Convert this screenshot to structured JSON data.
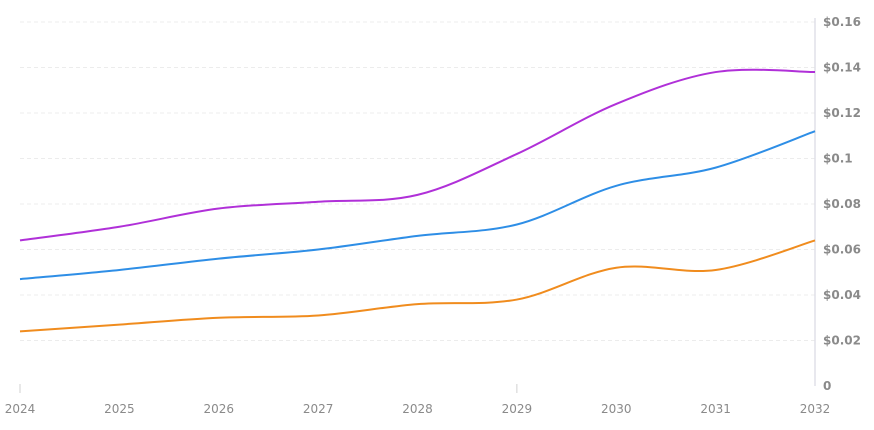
{
  "chart_data": {
    "type": "line",
    "x": [
      "2024",
      "2025",
      "2026",
      "2027",
      "2028",
      "2029",
      "2030",
      "2031",
      "2032"
    ],
    "xlim": [
      2024,
      2032
    ],
    "ylim": [
      0,
      0.16
    ],
    "y_ticks": [
      0,
      0.02,
      0.04,
      0.06,
      0.08,
      0.1,
      0.12,
      0.14,
      0.16
    ],
    "y_tick_labels": [
      "0",
      "$0.02",
      "$0.04",
      "$0.06",
      "$0.08",
      "$0.1",
      "$0.12",
      "$0.14",
      "$0.16"
    ],
    "y_axis_side": "right",
    "grid": "horizontal dashed",
    "legend": "none",
    "series": [
      {
        "color": "#b030d8",
        "values": [
          0.064,
          0.07,
          0.078,
          0.081,
          0.084,
          0.102,
          0.124,
          0.138,
          0.138
        ]
      },
      {
        "color": "#2e8ee6",
        "values": [
          0.047,
          0.051,
          0.056,
          0.06,
          0.066,
          0.071,
          0.088,
          0.096,
          0.112
        ]
      },
      {
        "color": "#f08c1e",
        "values": [
          0.024,
          0.027,
          0.03,
          0.031,
          0.036,
          0.038,
          0.052,
          0.051,
          0.064
        ]
      }
    ]
  }
}
